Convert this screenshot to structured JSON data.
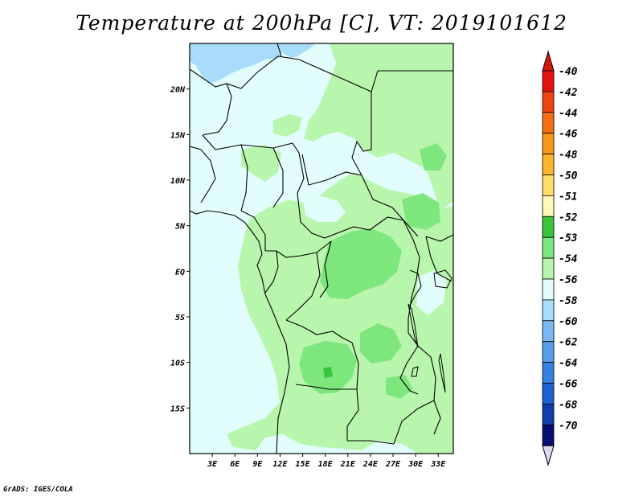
{
  "title": "Temperature at 200hPa [C], VT: 2019101612",
  "credit": "GrADS: IGES/COLA",
  "map": {
    "lat_labels": [
      "20N",
      "15N",
      "10N",
      "5N",
      "EQ",
      "5S",
      "10S",
      "15S"
    ],
    "lat_values": [
      20,
      15,
      10,
      5,
      0,
      -5,
      -10,
      -15
    ],
    "lon_labels": [
      "3E",
      "6E",
      "9E",
      "12E",
      "15E",
      "18E",
      "21E",
      "24E",
      "27E",
      "30E",
      "33E"
    ],
    "lon_values": [
      3,
      6,
      9,
      12,
      15,
      18,
      21,
      24,
      27,
      30,
      33
    ],
    "lat_range": [
      -20,
      25
    ],
    "lon_range": [
      0,
      35
    ]
  },
  "colorbar": {
    "labels": [
      "-40",
      "-42",
      "-44",
      "-46",
      "-48",
      "-50",
      "-51",
      "-52",
      "-53",
      "-54",
      "-56",
      "-58",
      "-60",
      "-62",
      "-64",
      "-66",
      "-68",
      "-70"
    ],
    "colors": [
      "#e6120f",
      "#f04410",
      "#f56f12",
      "#f7981a",
      "#fbb52e",
      "#fedb6a",
      "#fef9b4",
      "#3ac43a",
      "#7de67d",
      "#b9f6ad",
      "#e1fefd",
      "#a8dcfa",
      "#7ab8f3",
      "#579cea",
      "#3680e0",
      "#1d62cf",
      "#0f3fa8",
      "#080f72"
    ],
    "arrow_top_color": "#d11a0a",
    "arrow_bottom_color": "#dcd8f6"
  }
}
